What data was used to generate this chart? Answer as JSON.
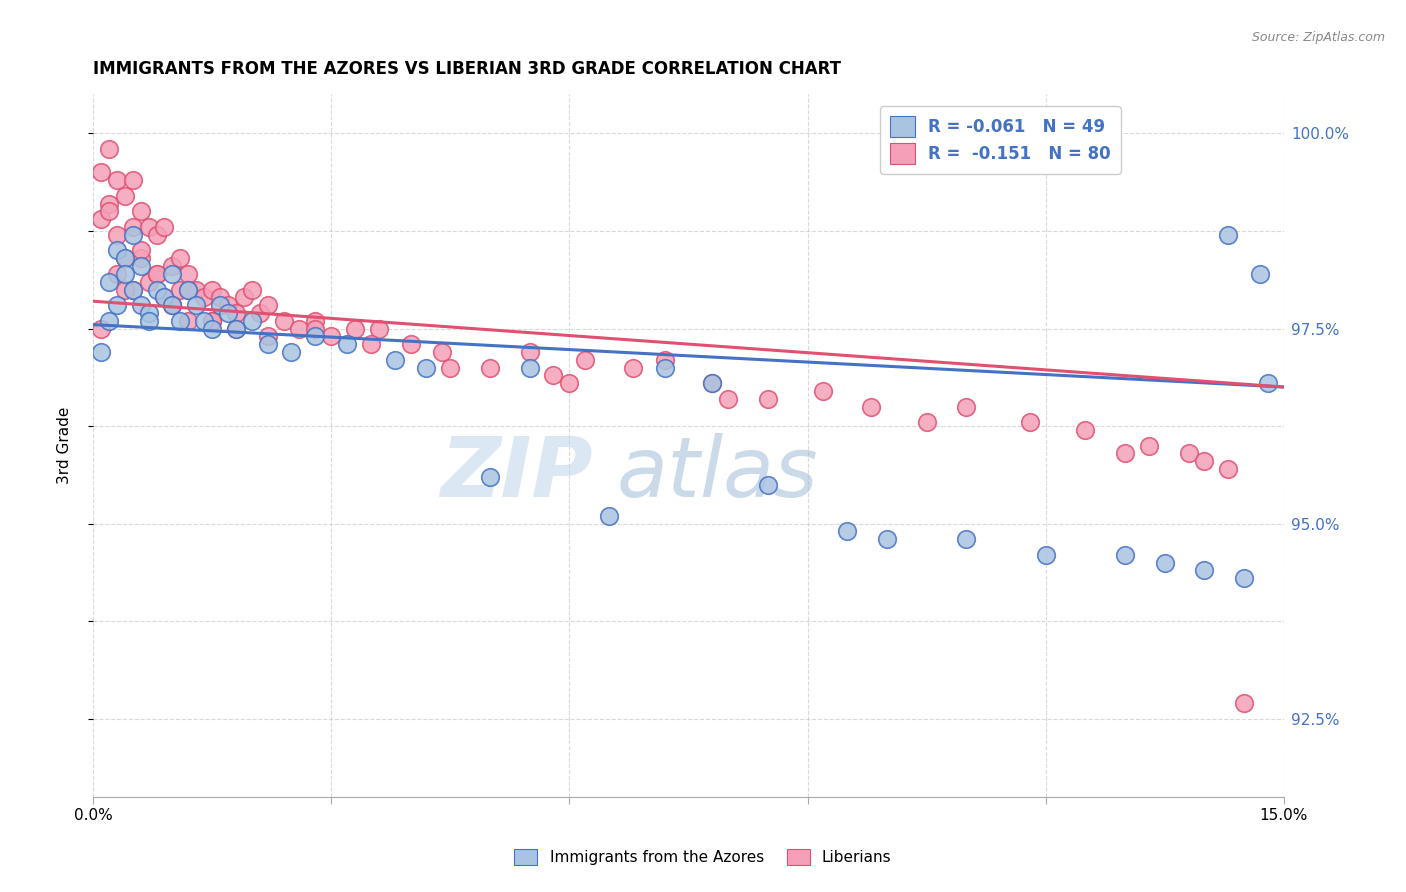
{
  "title": "IMMIGRANTS FROM THE AZORES VS LIBERIAN 3RD GRADE CORRELATION CHART",
  "source": "Source: ZipAtlas.com",
  "ylabel": "3rd Grade",
  "xlim": [
    0.0,
    0.15
  ],
  "ylim": [
    0.915,
    1.005
  ],
  "xtick_positions": [
    0.0,
    0.03,
    0.06,
    0.09,
    0.12,
    0.15
  ],
  "xtick_labels": [
    "0.0%",
    "",
    "",
    "",
    "",
    "15.0%"
  ],
  "ytick_positions": [
    0.925,
    0.9375,
    0.95,
    0.9625,
    0.975,
    0.9875,
    1.0
  ],
  "ytick_labels": [
    "92.5%",
    "",
    "95.0%",
    "",
    "97.5%",
    "",
    "100.0%"
  ],
  "watermark_zip": "ZIP",
  "watermark_atlas": "atlas",
  "blue_color": "#a8c4e0",
  "pink_color": "#f4a0b8",
  "blue_line_color": "#4472c4",
  "pink_line_color": "#e05070",
  "blue_line": [
    0.0,
    0.15,
    0.9755,
    0.9675
  ],
  "pink_line": [
    0.0,
    0.15,
    0.9785,
    0.9675
  ],
  "azores_x": [
    0.001,
    0.002,
    0.002,
    0.003,
    0.003,
    0.004,
    0.004,
    0.005,
    0.005,
    0.006,
    0.006,
    0.007,
    0.007,
    0.008,
    0.009,
    0.01,
    0.01,
    0.011,
    0.012,
    0.013,
    0.014,
    0.015,
    0.016,
    0.017,
    0.018,
    0.02,
    0.022,
    0.025,
    0.028,
    0.032,
    0.038,
    0.042,
    0.05,
    0.055,
    0.065,
    0.072,
    0.078,
    0.085,
    0.095,
    0.1,
    0.11,
    0.12,
    0.13,
    0.135,
    0.14,
    0.143,
    0.145,
    0.147,
    0.148
  ],
  "azores_y": [
    0.972,
    0.976,
    0.981,
    0.978,
    0.985,
    0.984,
    0.982,
    0.98,
    0.987,
    0.978,
    0.983,
    0.977,
    0.976,
    0.98,
    0.979,
    0.982,
    0.978,
    0.976,
    0.98,
    0.978,
    0.976,
    0.975,
    0.978,
    0.977,
    0.975,
    0.976,
    0.973,
    0.972,
    0.974,
    0.973,
    0.971,
    0.97,
    0.956,
    0.97,
    0.951,
    0.97,
    0.968,
    0.955,
    0.949,
    0.948,
    0.948,
    0.946,
    0.946,
    0.945,
    0.944,
    0.987,
    0.943,
    0.982,
    0.968
  ],
  "liberian_x": [
    0.001,
    0.001,
    0.002,
    0.002,
    0.003,
    0.003,
    0.003,
    0.004,
    0.004,
    0.005,
    0.005,
    0.005,
    0.006,
    0.006,
    0.007,
    0.007,
    0.008,
    0.008,
    0.009,
    0.009,
    0.01,
    0.01,
    0.011,
    0.011,
    0.012,
    0.012,
    0.013,
    0.014,
    0.015,
    0.015,
    0.016,
    0.017,
    0.018,
    0.019,
    0.02,
    0.021,
    0.022,
    0.024,
    0.026,
    0.028,
    0.03,
    0.033,
    0.036,
    0.04,
    0.044,
    0.05,
    0.055,
    0.058,
    0.062,
    0.068,
    0.072,
    0.078,
    0.085,
    0.092,
    0.098,
    0.105,
    0.11,
    0.118,
    0.125,
    0.13,
    0.133,
    0.138,
    0.14,
    0.143,
    0.001,
    0.002,
    0.004,
    0.006,
    0.008,
    0.01,
    0.012,
    0.015,
    0.018,
    0.022,
    0.028,
    0.035,
    0.045,
    0.06,
    0.08,
    0.145
  ],
  "liberian_y": [
    0.995,
    0.989,
    0.998,
    0.991,
    0.994,
    0.987,
    0.982,
    0.992,
    0.984,
    0.994,
    0.988,
    0.98,
    0.99,
    0.984,
    0.988,
    0.981,
    0.987,
    0.982,
    0.988,
    0.979,
    0.983,
    0.978,
    0.984,
    0.98,
    0.982,
    0.976,
    0.98,
    0.979,
    0.98,
    0.976,
    0.979,
    0.978,
    0.977,
    0.979,
    0.98,
    0.977,
    0.978,
    0.976,
    0.975,
    0.976,
    0.974,
    0.975,
    0.975,
    0.973,
    0.972,
    0.97,
    0.972,
    0.969,
    0.971,
    0.97,
    0.971,
    0.968,
    0.966,
    0.967,
    0.965,
    0.963,
    0.965,
    0.963,
    0.962,
    0.959,
    0.96,
    0.959,
    0.958,
    0.957,
    0.975,
    0.99,
    0.98,
    0.985,
    0.982,
    0.978,
    0.98,
    0.976,
    0.975,
    0.974,
    0.975,
    0.973,
    0.97,
    0.968,
    0.966,
    0.927
  ]
}
